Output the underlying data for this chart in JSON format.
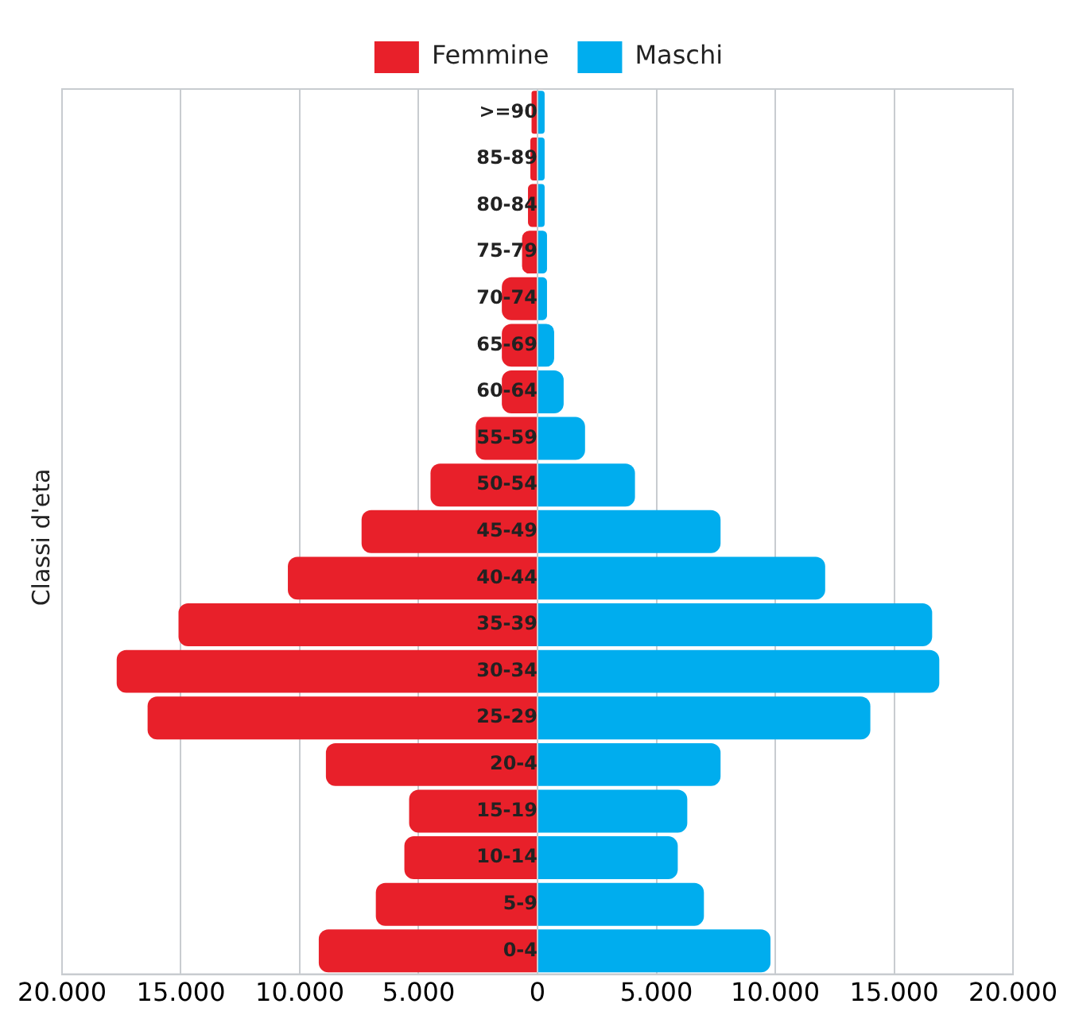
{
  "chart_data": {
    "type": "bar",
    "orientation": "horizontal",
    "ylabel": "Classi d'eta",
    "categories": [
      ">=90",
      "85-89",
      "80-84",
      "75-79",
      "70-74",
      "65-69",
      "60-64",
      "55-59",
      "50-54",
      "45-49",
      "40-44",
      "35-39",
      "30-34",
      "25-29",
      "20-4",
      "15-19",
      "10-14",
      "5-9",
      "0-4"
    ],
    "series": [
      {
        "name": "Femmine",
        "color": "#e8202a",
        "values": [
          -250,
          -300,
          -400,
          -650,
          -1500,
          -1500,
          -1500,
          -2600,
          -4500,
          -7400,
          -10500,
          -15100,
          -17700,
          -16400,
          -8900,
          -5400,
          -5600,
          -6800,
          -9200
        ]
      },
      {
        "name": "Maschi",
        "color": "#00adee",
        "values": [
          300,
          300,
          300,
          400,
          400,
          700,
          1100,
          2000,
          4100,
          7700,
          12100,
          16600,
          16900,
          14000,
          7700,
          6300,
          5900,
          7000,
          9800
        ]
      }
    ],
    "xlim": [
      -20000,
      20000
    ],
    "xticks": [
      {
        "value": -20000,
        "label": "20.000"
      },
      {
        "value": -15000,
        "label": "15.000"
      },
      {
        "value": -10000,
        "label": "10.000"
      },
      {
        "value": -5000,
        "label": "5.000"
      },
      0,
      {
        "value": 5000,
        "label": "5.000"
      },
      {
        "value": 10000,
        "label": "10.000"
      },
      {
        "value": 15000,
        "label": "15.000"
      },
      {
        "value": 20000,
        "label": "20.000"
      }
    ],
    "grid": "x",
    "legend": "top",
    "stacked": true
  }
}
